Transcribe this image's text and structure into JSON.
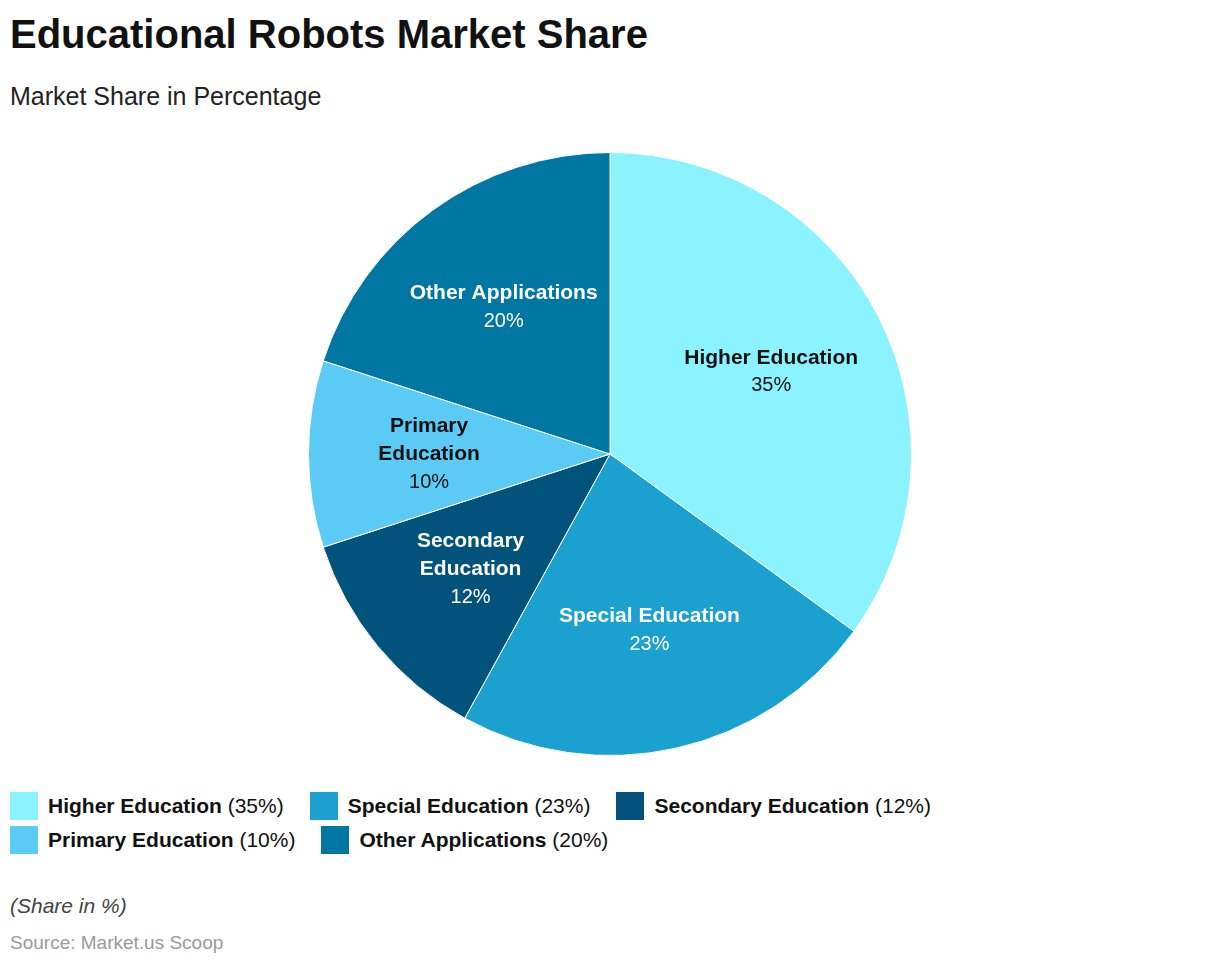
{
  "chart_data": {
    "type": "pie",
    "title": "Educational Robots Market Share",
    "subtitle": "Market Share in Percentage",
    "categories": [
      "Higher Education",
      "Special Education",
      "Secondary Education",
      "Primary Education",
      "Other Applications"
    ],
    "values": [
      35,
      23,
      12,
      10,
      20
    ],
    "value_labels": [
      "35%",
      "23%",
      "12%",
      "10%",
      "20%"
    ],
    "colors": [
      "#8af3ff",
      "#1aa1cf",
      "#02537b",
      "#5bcaf5",
      "#0077a3"
    ],
    "data_labels": true,
    "legend": "bottom",
    "legend_labels": [
      "Higher Education (35%)",
      "Special Education (23%)",
      "Secondary Education (12%)",
      "Primary Education (10%)",
      "Other Applications (20%)"
    ],
    "note": "(Share in %)",
    "source": "Source: Market.us Scoop"
  }
}
